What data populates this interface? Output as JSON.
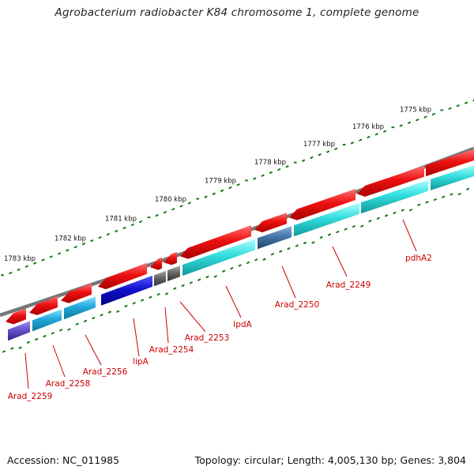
{
  "title": "Agrobacterium radiobacter K84 chromosome 1, complete genome",
  "footer": {
    "accession": "Accession: NC_011985",
    "summary": "Topology: circular; Length: 4,005,130 bp; Genes: 3,804"
  },
  "colors": {
    "forward_gene": "#ee1111",
    "cds_cyan": "#33dddd",
    "cds_light_blue": "#22aadd",
    "cds_blue": "#1111cc",
    "cds_steel": "#4477aa",
    "cds_purple": "#6655cc",
    "cds_gray": "#666666",
    "backbone": "#777777",
    "tick": "#117711",
    "label": "#cc0000"
  },
  "scale_labels": [
    "1775 kbp",
    "1776 kbp",
    "1777 kbp",
    "1778 kbp",
    "1779 kbp",
    "1780 kbp",
    "1781 kbp",
    "1782 kbp",
    "1783 kbp"
  ],
  "gene_labels": [
    "pdhA2",
    "Arad_2249",
    "Arad_2250",
    "lpdA",
    "Arad_2253",
    "Arad_2254",
    "lipA",
    "Arad_2256",
    "Arad_2258",
    "Arad_2259"
  ]
}
